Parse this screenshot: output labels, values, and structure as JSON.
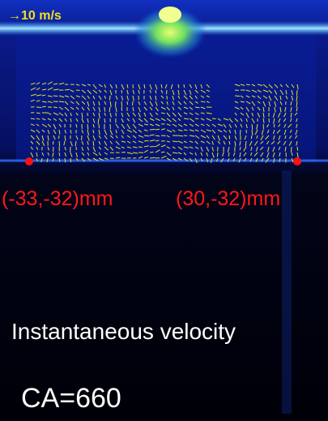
{
  "scale_label": "→10 m/s",
  "points": [
    {
      "label": "(-33,-32)mm"
    },
    {
      "label": "(30,-32)mm"
    }
  ],
  "caption": "Instantaneous velocity",
  "crank_angle": "CA=660"
}
